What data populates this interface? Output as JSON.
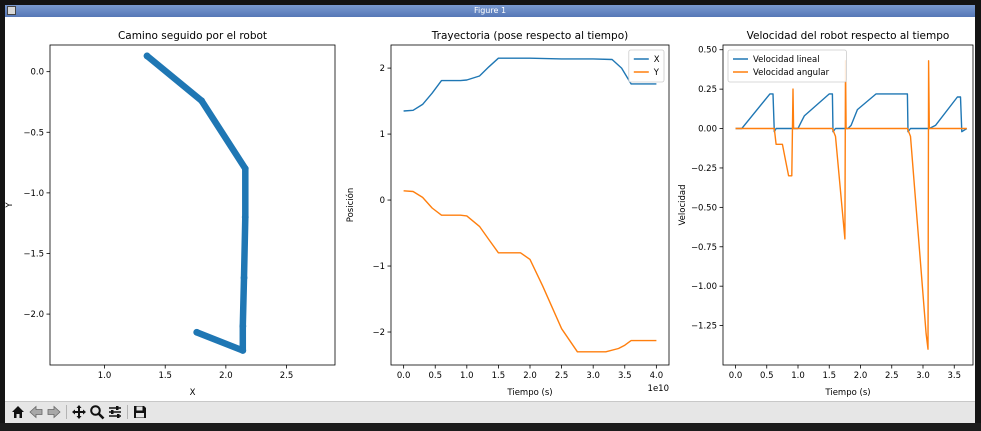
{
  "window": {
    "title": "Figure 1",
    "toolbar": {
      "buttons": [
        {
          "name": "home-button",
          "icon": "home-icon"
        },
        {
          "name": "back-button",
          "icon": "arrow-left-icon"
        },
        {
          "name": "forward-button",
          "icon": "arrow-right-icon"
        },
        {
          "name": "pan-button",
          "icon": "move-icon"
        },
        {
          "name": "zoom-button",
          "icon": "magnifier-icon"
        },
        {
          "name": "configure-subplots-button",
          "icon": "sliders-icon"
        },
        {
          "name": "save-button",
          "icon": "floppy-disk-icon"
        }
      ]
    }
  },
  "colors": {
    "blue": "#1f77b4",
    "orange": "#ff7f0e",
    "titlebar": "#5b7cb8",
    "toolbar": "#e6e6e6"
  },
  "chart_data": [
    {
      "type": "scatter",
      "title": "Camino seguido por el robot",
      "xlabel": "X",
      "ylabel": "Y",
      "xlim": [
        0.55,
        2.9
      ],
      "ylim": [
        -2.42,
        0.22
      ],
      "xticks": [
        1.0,
        1.5,
        2.0,
        2.5
      ],
      "xtick_labels": [
        "1.0",
        "1.5",
        "2.0",
        "2.5"
      ],
      "yticks": [
        0.0,
        -0.5,
        -1.0,
        -1.5,
        -2.0
      ],
      "ytick_labels": [
        "0.0",
        "−0.5",
        "−1.0",
        "−1.5",
        "−2.0"
      ],
      "grid": false,
      "series": [
        {
          "color": "#1f77b4",
          "x": [
            1.35,
            1.8,
            2.16,
            2.16,
            2.15,
            2.14,
            2.14,
            1.76
          ],
          "y": [
            0.13,
            -0.24,
            -0.8,
            -1.2,
            -1.7,
            -2.1,
            -2.3,
            -2.15
          ]
        }
      ]
    },
    {
      "type": "line",
      "title": "Trayectoria (pose respecto al tiempo)",
      "xlabel": "Tiempo (s)",
      "ylabel": "Posición",
      "x_offset_label": "1e10",
      "xlim": [
        -0.2,
        4.2
      ],
      "ylim": [
        -2.5,
        2.35
      ],
      "xticks": [
        0.0,
        0.5,
        1.0,
        1.5,
        2.0,
        2.5,
        3.0,
        3.5,
        4.0
      ],
      "xtick_labels": [
        "0.0",
        "0.5",
        "1.0",
        "1.5",
        "2.0",
        "2.5",
        "3.0",
        "3.5",
        "4.0"
      ],
      "yticks": [
        2,
        1,
        0,
        -1,
        -2
      ],
      "ytick_labels": [
        "2",
        "1",
        "0",
        "−1",
        "−2"
      ],
      "legend": "top-right",
      "grid": false,
      "series": [
        {
          "name": "X",
          "color": "#1f77b4",
          "x": [
            0.0,
            0.15,
            0.3,
            0.45,
            0.6,
            0.9,
            1.0,
            1.2,
            1.35,
            1.5,
            1.6,
            2.0,
            2.5,
            3.0,
            3.3,
            3.45,
            3.6,
            3.7,
            3.8,
            3.9,
            4.0
          ],
          "y": [
            1.35,
            1.36,
            1.45,
            1.62,
            1.81,
            1.81,
            1.82,
            1.88,
            2.02,
            2.15,
            2.15,
            2.15,
            2.14,
            2.14,
            2.13,
            2.0,
            1.76,
            1.76,
            1.76,
            1.76,
            1.76
          ]
        },
        {
          "name": "Y",
          "color": "#ff7f0e",
          "x": [
            0.0,
            0.15,
            0.3,
            0.45,
            0.6,
            0.9,
            1.0,
            1.2,
            1.35,
            1.5,
            1.6,
            1.85,
            2.0,
            2.2,
            2.5,
            2.75,
            3.0,
            3.2,
            3.4,
            3.5,
            3.6,
            3.8,
            4.0
          ],
          "y": [
            0.14,
            0.13,
            0.04,
            -0.12,
            -0.23,
            -0.23,
            -0.24,
            -0.4,
            -0.6,
            -0.8,
            -0.8,
            -0.8,
            -0.9,
            -1.3,
            -1.95,
            -2.3,
            -2.3,
            -2.3,
            -2.25,
            -2.2,
            -2.13,
            -2.13,
            -2.13
          ]
        }
      ]
    },
    {
      "type": "line",
      "title": "Velocidad del robot respecto al tiempo",
      "xlabel": "Tiempo (s)",
      "ylabel": "Velocidad",
      "xlim": [
        -0.2,
        3.8
      ],
      "ylim": [
        -1.5,
        0.53
      ],
      "xticks": [
        0.0,
        0.5,
        1.0,
        1.5,
        2.0,
        2.5,
        3.0,
        3.5
      ],
      "xtick_labels": [
        "0.0",
        "0.5",
        "1.0",
        "1.5",
        "2.0",
        "2.5",
        "3.0",
        "3.5"
      ],
      "yticks": [
        0.5,
        0.25,
        0.0,
        -0.25,
        -0.5,
        -0.75,
        -1.0,
        -1.25
      ],
      "ytick_labels": [
        "0.50",
        "0.25",
        "0.00",
        "−0.25",
        "−0.50",
        "−0.75",
        "−1.00",
        "−1.25"
      ],
      "legend": "top-left",
      "grid": false,
      "series": [
        {
          "name": "Velocidad lineal",
          "color": "#1f77b4",
          "x": [
            0.0,
            0.1,
            0.55,
            0.6,
            0.62,
            0.65,
            0.9,
            0.95,
            1.0,
            1.05,
            1.1,
            1.5,
            1.55,
            1.56,
            1.6,
            1.75,
            1.8,
            1.85,
            1.95,
            2.25,
            2.7,
            2.75,
            2.76,
            2.8,
            3.1,
            3.2,
            3.55,
            3.6,
            3.62,
            3.7
          ],
          "y": [
            0.0,
            0.0,
            0.22,
            0.22,
            -0.02,
            0.0,
            0.0,
            0.0,
            0.0,
            0.04,
            0.08,
            0.22,
            0.22,
            -0.02,
            0.0,
            0.0,
            0.0,
            0.02,
            0.12,
            0.22,
            0.22,
            0.22,
            -0.02,
            0.0,
            0.0,
            0.02,
            0.2,
            0.2,
            -0.02,
            0.0
          ]
        },
        {
          "name": "Velocidad angular",
          "color": "#ff7f0e",
          "x": [
            0.0,
            0.62,
            0.65,
            0.75,
            0.8,
            0.85,
            0.9,
            0.92,
            0.93,
            0.95,
            1.0,
            1.55,
            1.6,
            1.75,
            1.76,
            1.77,
            1.8,
            2.75,
            2.8,
            3.05,
            3.08,
            3.09,
            3.1,
            3.12,
            3.15,
            3.7
          ],
          "y": [
            0.0,
            0.0,
            -0.1,
            -0.1,
            -0.2,
            -0.3,
            -0.3,
            0.25,
            0.0,
            0.0,
            0.0,
            0.0,
            -0.05,
            -0.7,
            0.43,
            0.0,
            0.0,
            0.0,
            -0.05,
            -1.3,
            -1.4,
            0.43,
            0.0,
            0.0,
            0.0,
            0.0
          ]
        }
      ]
    }
  ]
}
